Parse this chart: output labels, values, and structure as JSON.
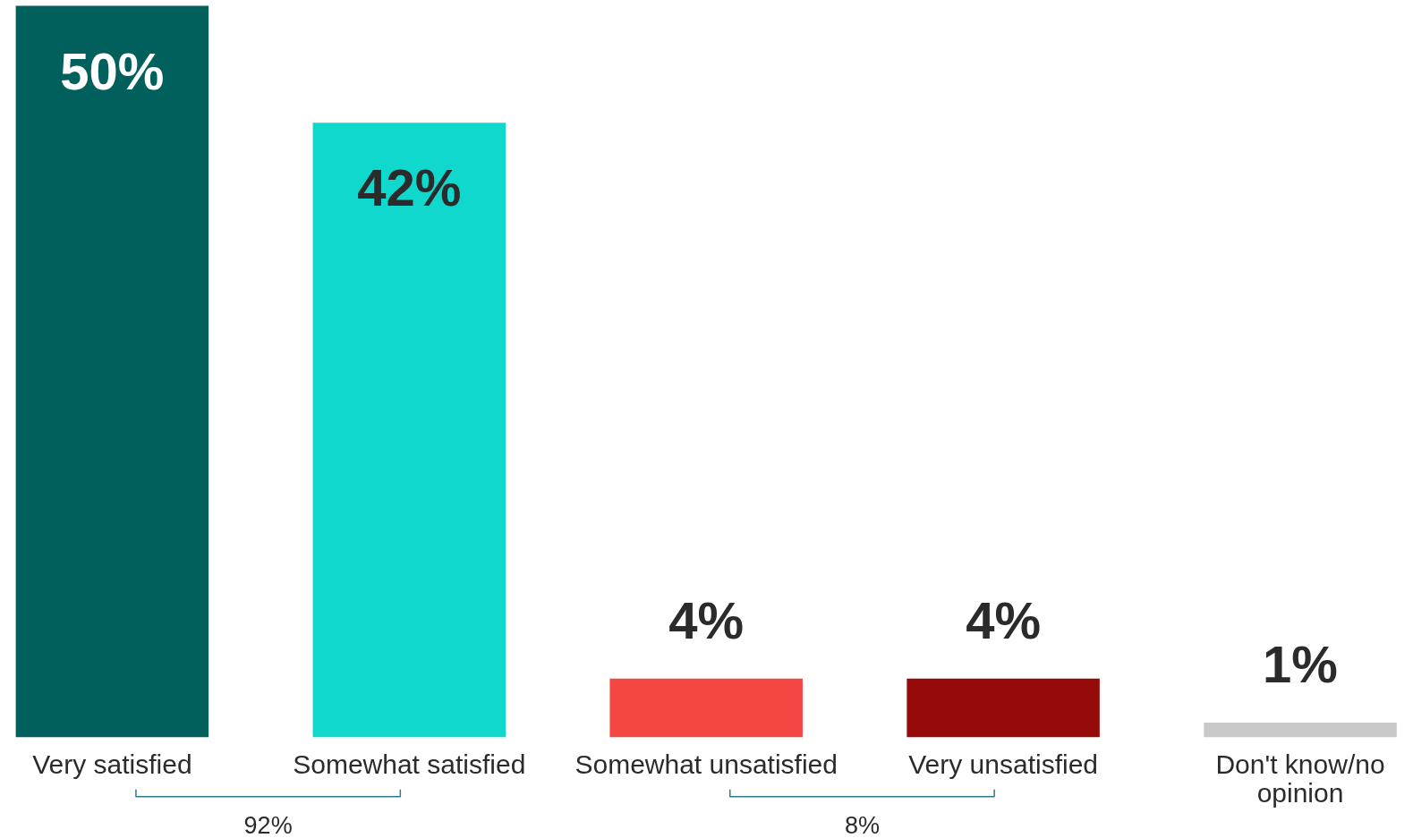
{
  "chart_data": {
    "type": "bar",
    "categories": [
      "Very satisfied",
      "Somewhat satisfied",
      "Somewhat unsatisfied",
      "Very unsatisfied",
      "Don't know/no opinion"
    ],
    "values": [
      50,
      42,
      4,
      4,
      1
    ],
    "colors": [
      "#02605c",
      "#10d8cc",
      "#f44744",
      "#960a0a",
      "#c8c8c8"
    ],
    "value_labels": [
      "50%",
      "42%",
      "4%",
      "4%",
      "1%"
    ],
    "annotations": [
      "92%",
      "8%"
    ]
  }
}
